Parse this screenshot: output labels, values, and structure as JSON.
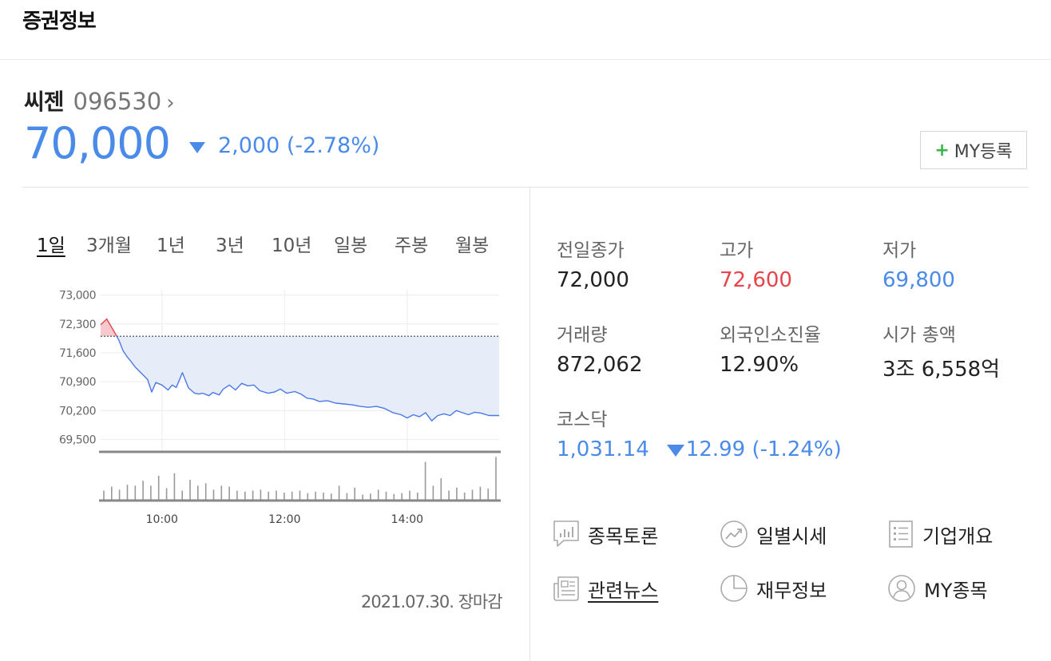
{
  "header": {
    "title": "증권정보"
  },
  "stock": {
    "name": "씨젠",
    "code": "096530",
    "code_arrow": "›",
    "price": "70,000",
    "change": "2,000 (-2.78%)",
    "direction": "down",
    "down_color": "#4a8be9",
    "up_color": "#e8444c"
  },
  "my_button": {
    "plus": "+",
    "label": "MY등록"
  },
  "tabs": [
    {
      "label": "1일",
      "active": true
    },
    {
      "label": "3개월",
      "active": false
    },
    {
      "label": "1년",
      "active": false
    },
    {
      "label": "3년",
      "active": false
    },
    {
      "label": "10년",
      "active": false
    },
    {
      "label": "일봉",
      "active": false
    },
    {
      "label": "주봉",
      "active": false
    },
    {
      "label": "월봉",
      "active": false
    }
  ],
  "chart_data": {
    "type": "line",
    "ytick_labels": [
      "73,000",
      "72,300",
      "71,600",
      "70,900",
      "70,200",
      "69,500"
    ],
    "xtick_labels": [
      "10:00",
      "12:00",
      "14:00"
    ],
    "ylim": [
      69200,
      73050
    ],
    "x_range": [
      "09:00",
      "15:30"
    ],
    "prev_close": 72000,
    "x": [
      0,
      6,
      10,
      14,
      18,
      22,
      26,
      30,
      34,
      40,
      46,
      50,
      54,
      60,
      66,
      70,
      74,
      80,
      86,
      92,
      96,
      100,
      106,
      110,
      116,
      120,
      126,
      132,
      138,
      144,
      150,
      156,
      164,
      170,
      176,
      182,
      190,
      196,
      202,
      208,
      214,
      222,
      230,
      238,
      246,
      254,
      262,
      270,
      278,
      286,
      294,
      300,
      306,
      312,
      318,
      324,
      330,
      336,
      342,
      348,
      354,
      360,
      366,
      372,
      380,
      385,
      390
    ],
    "values": [
      72280,
      72420,
      72250,
      72080,
      71900,
      71650,
      71500,
      71380,
      71250,
      71100,
      70950,
      70650,
      70880,
      70820,
      70700,
      70820,
      70760,
      71120,
      70750,
      70620,
      70600,
      70620,
      70560,
      70640,
      70580,
      70720,
      70820,
      70700,
      70860,
      70800,
      70820,
      70680,
      70620,
      70650,
      70720,
      70620,
      70660,
      70600,
      70500,
      70480,
      70420,
      70440,
      70380,
      70360,
      70340,
      70300,
      70280,
      70300,
      70250,
      70150,
      70100,
      70020,
      70100,
      70050,
      70150,
      69950,
      70080,
      70120,
      70080,
      70200,
      70150,
      70100,
      70160,
      70140,
      70080,
      70080,
      70080
    ],
    "volume_relative": [
      0.2,
      0.28,
      0.22,
      0.32,
      0.3,
      0.4,
      0.3,
      0.5,
      0.25,
      0.55,
      0.2,
      0.42,
      0.3,
      0.35,
      0.22,
      0.3,
      0.28,
      0.2,
      0.18,
      0.2,
      0.22,
      0.18,
      0.2,
      0.16,
      0.18,
      0.2,
      0.15,
      0.18,
      0.16,
      0.14,
      0.3,
      0.15,
      0.26,
      0.12,
      0.14,
      0.22,
      0.18,
      0.13,
      0.15,
      0.2,
      0.16,
      0.78,
      0.3,
      0.45,
      0.2,
      0.26,
      0.16,
      0.22,
      0.28,
      0.24,
      0.88
    ]
  },
  "chart_date": "2021.07.30. 장마감",
  "info": {
    "prev_close": {
      "label": "전일종가",
      "value": "72,000",
      "color": "#222222"
    },
    "high": {
      "label": "고가",
      "value": "72,600",
      "color": "#e8444c"
    },
    "low": {
      "label": "저가",
      "value": "69,800",
      "color": "#4a8be9"
    },
    "volume": {
      "label": "거래량",
      "value": "872,062",
      "color": "#222222"
    },
    "foreign_ratio": {
      "label": "외국인소진율",
      "value": "12.90%",
      "color": "#222222"
    },
    "market_cap": {
      "label": "시가 총액",
      "value": "3조 6,558억",
      "color": "#222222"
    },
    "kosdaq": {
      "label": "코스닥",
      "index": "1,031.14",
      "change": "12.99 (-1.24%)"
    }
  },
  "links": {
    "discussion": {
      "label": "종목토론",
      "icon": "discussion-chart-icon"
    },
    "daily": {
      "label": "일별시세",
      "icon": "trend-circle-icon"
    },
    "company": {
      "label": "기업개요",
      "icon": "document-list-icon"
    },
    "news": {
      "label": "관련뉴스",
      "icon": "newspaper-icon"
    },
    "finance": {
      "label": "재무정보",
      "icon": "pie-chart-icon"
    },
    "my": {
      "label": "MY종목",
      "icon": "user-circle-icon"
    }
  }
}
